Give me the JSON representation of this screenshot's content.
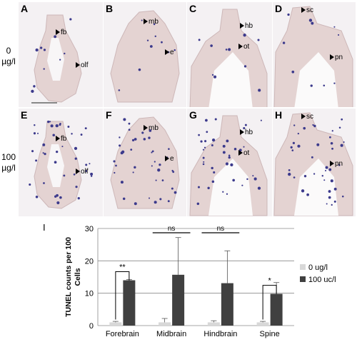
{
  "rows": [
    {
      "dose": "0",
      "unit": "µg/l"
    },
    {
      "dose": "100",
      "unit": "µg/l"
    }
  ],
  "panels": [
    {
      "letter": "A",
      "labels": [
        "fb",
        "olf"
      ],
      "shape": "forebrain",
      "stain": "low"
    },
    {
      "letter": "B",
      "labels": [
        "mb",
        "e"
      ],
      "shape": "midbrain",
      "stain": "low"
    },
    {
      "letter": "C",
      "labels": [
        "hb",
        "ot"
      ],
      "shape": "hindbrain",
      "stain": "low"
    },
    {
      "letter": "D",
      "labels": [
        "sc",
        "pn"
      ],
      "shape": "spine",
      "stain": "low"
    },
    {
      "letter": "E",
      "labels": [
        "fb",
        "olf"
      ],
      "shape": "forebrain",
      "stain": "high"
    },
    {
      "letter": "F",
      "labels": [
        "mb",
        "e"
      ],
      "shape": "midbrain",
      "stain": "high"
    },
    {
      "letter": "G",
      "labels": [
        "hb",
        "ot"
      ],
      "shape": "hindbrain",
      "stain": "high"
    },
    {
      "letter": "H",
      "labels": [
        "sc",
        "pn"
      ],
      "shape": "spine",
      "stain": "high"
    }
  ],
  "colors": {
    "tissue": "#e4d3d2",
    "tissue_edge": "#cdb7b8",
    "stain": "#3c3a8c",
    "control_bar": "#d8d8d8",
    "treated_bar": "#404040"
  },
  "chart_panel_letter": "I",
  "chart_data": {
    "type": "bar",
    "categories": [
      "Forebrain",
      "Midbrain",
      "Hindbrain",
      "Spine"
    ],
    "series": [
      {
        "name": "0 ug/l",
        "values": [
          1.0,
          1.0,
          1.0,
          1.0
        ],
        "errors": [
          0.3,
          1.2,
          0.5,
          0.3
        ]
      },
      {
        "name": "100 uc/l",
        "values": [
          14,
          15.7,
          13.1,
          9.8
        ],
        "errors": [
          0.2,
          11.5,
          10,
          3.5
        ]
      }
    ],
    "ylabel": "TUNEL counts per 100 Cells",
    "ylim": [
      0,
      30
    ],
    "yticks": [
      0,
      10,
      20,
      30
    ],
    "grid": true,
    "legend": "right",
    "significance": [
      "**",
      "ns",
      "ns",
      "*"
    ]
  }
}
